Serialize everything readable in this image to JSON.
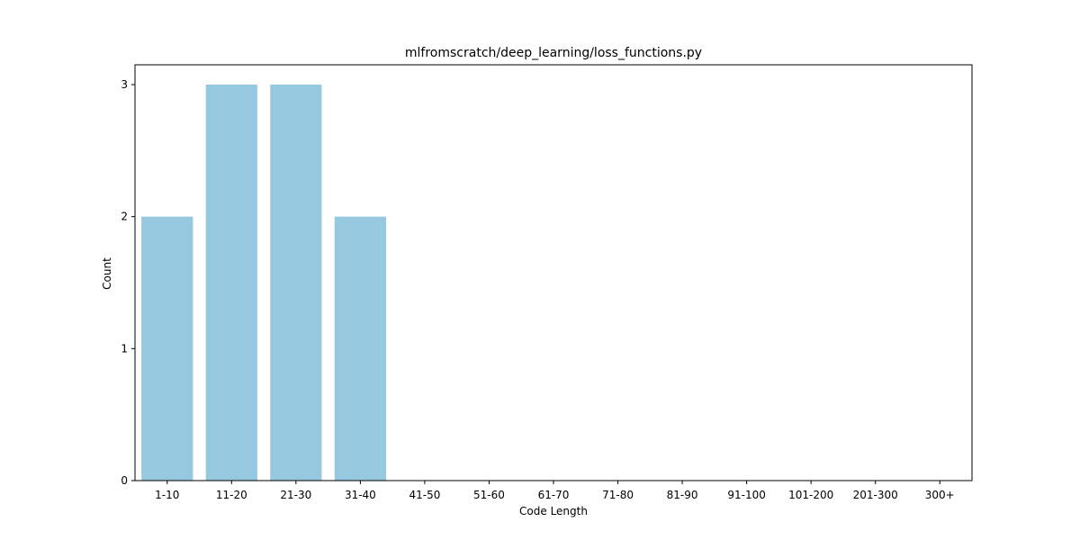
{
  "chart_data": {
    "type": "bar",
    "title": "mlfromscratch/deep_learning/loss_functions.py",
    "xlabel": "Code Length",
    "ylabel": "Count",
    "categories": [
      "1-10",
      "11-20",
      "21-30",
      "31-40",
      "41-50",
      "51-60",
      "61-70",
      "71-80",
      "81-90",
      "91-100",
      "101-200",
      "201-300",
      "300+"
    ],
    "values": [
      2,
      3,
      3,
      2,
      0,
      0,
      0,
      0,
      0,
      0,
      0,
      0,
      0
    ],
    "y_ticks": [
      0,
      1,
      2,
      3
    ],
    "ylim": [
      0,
      3.15
    ],
    "grid": false,
    "legend": "none",
    "bar_color": "#96c9df"
  }
}
